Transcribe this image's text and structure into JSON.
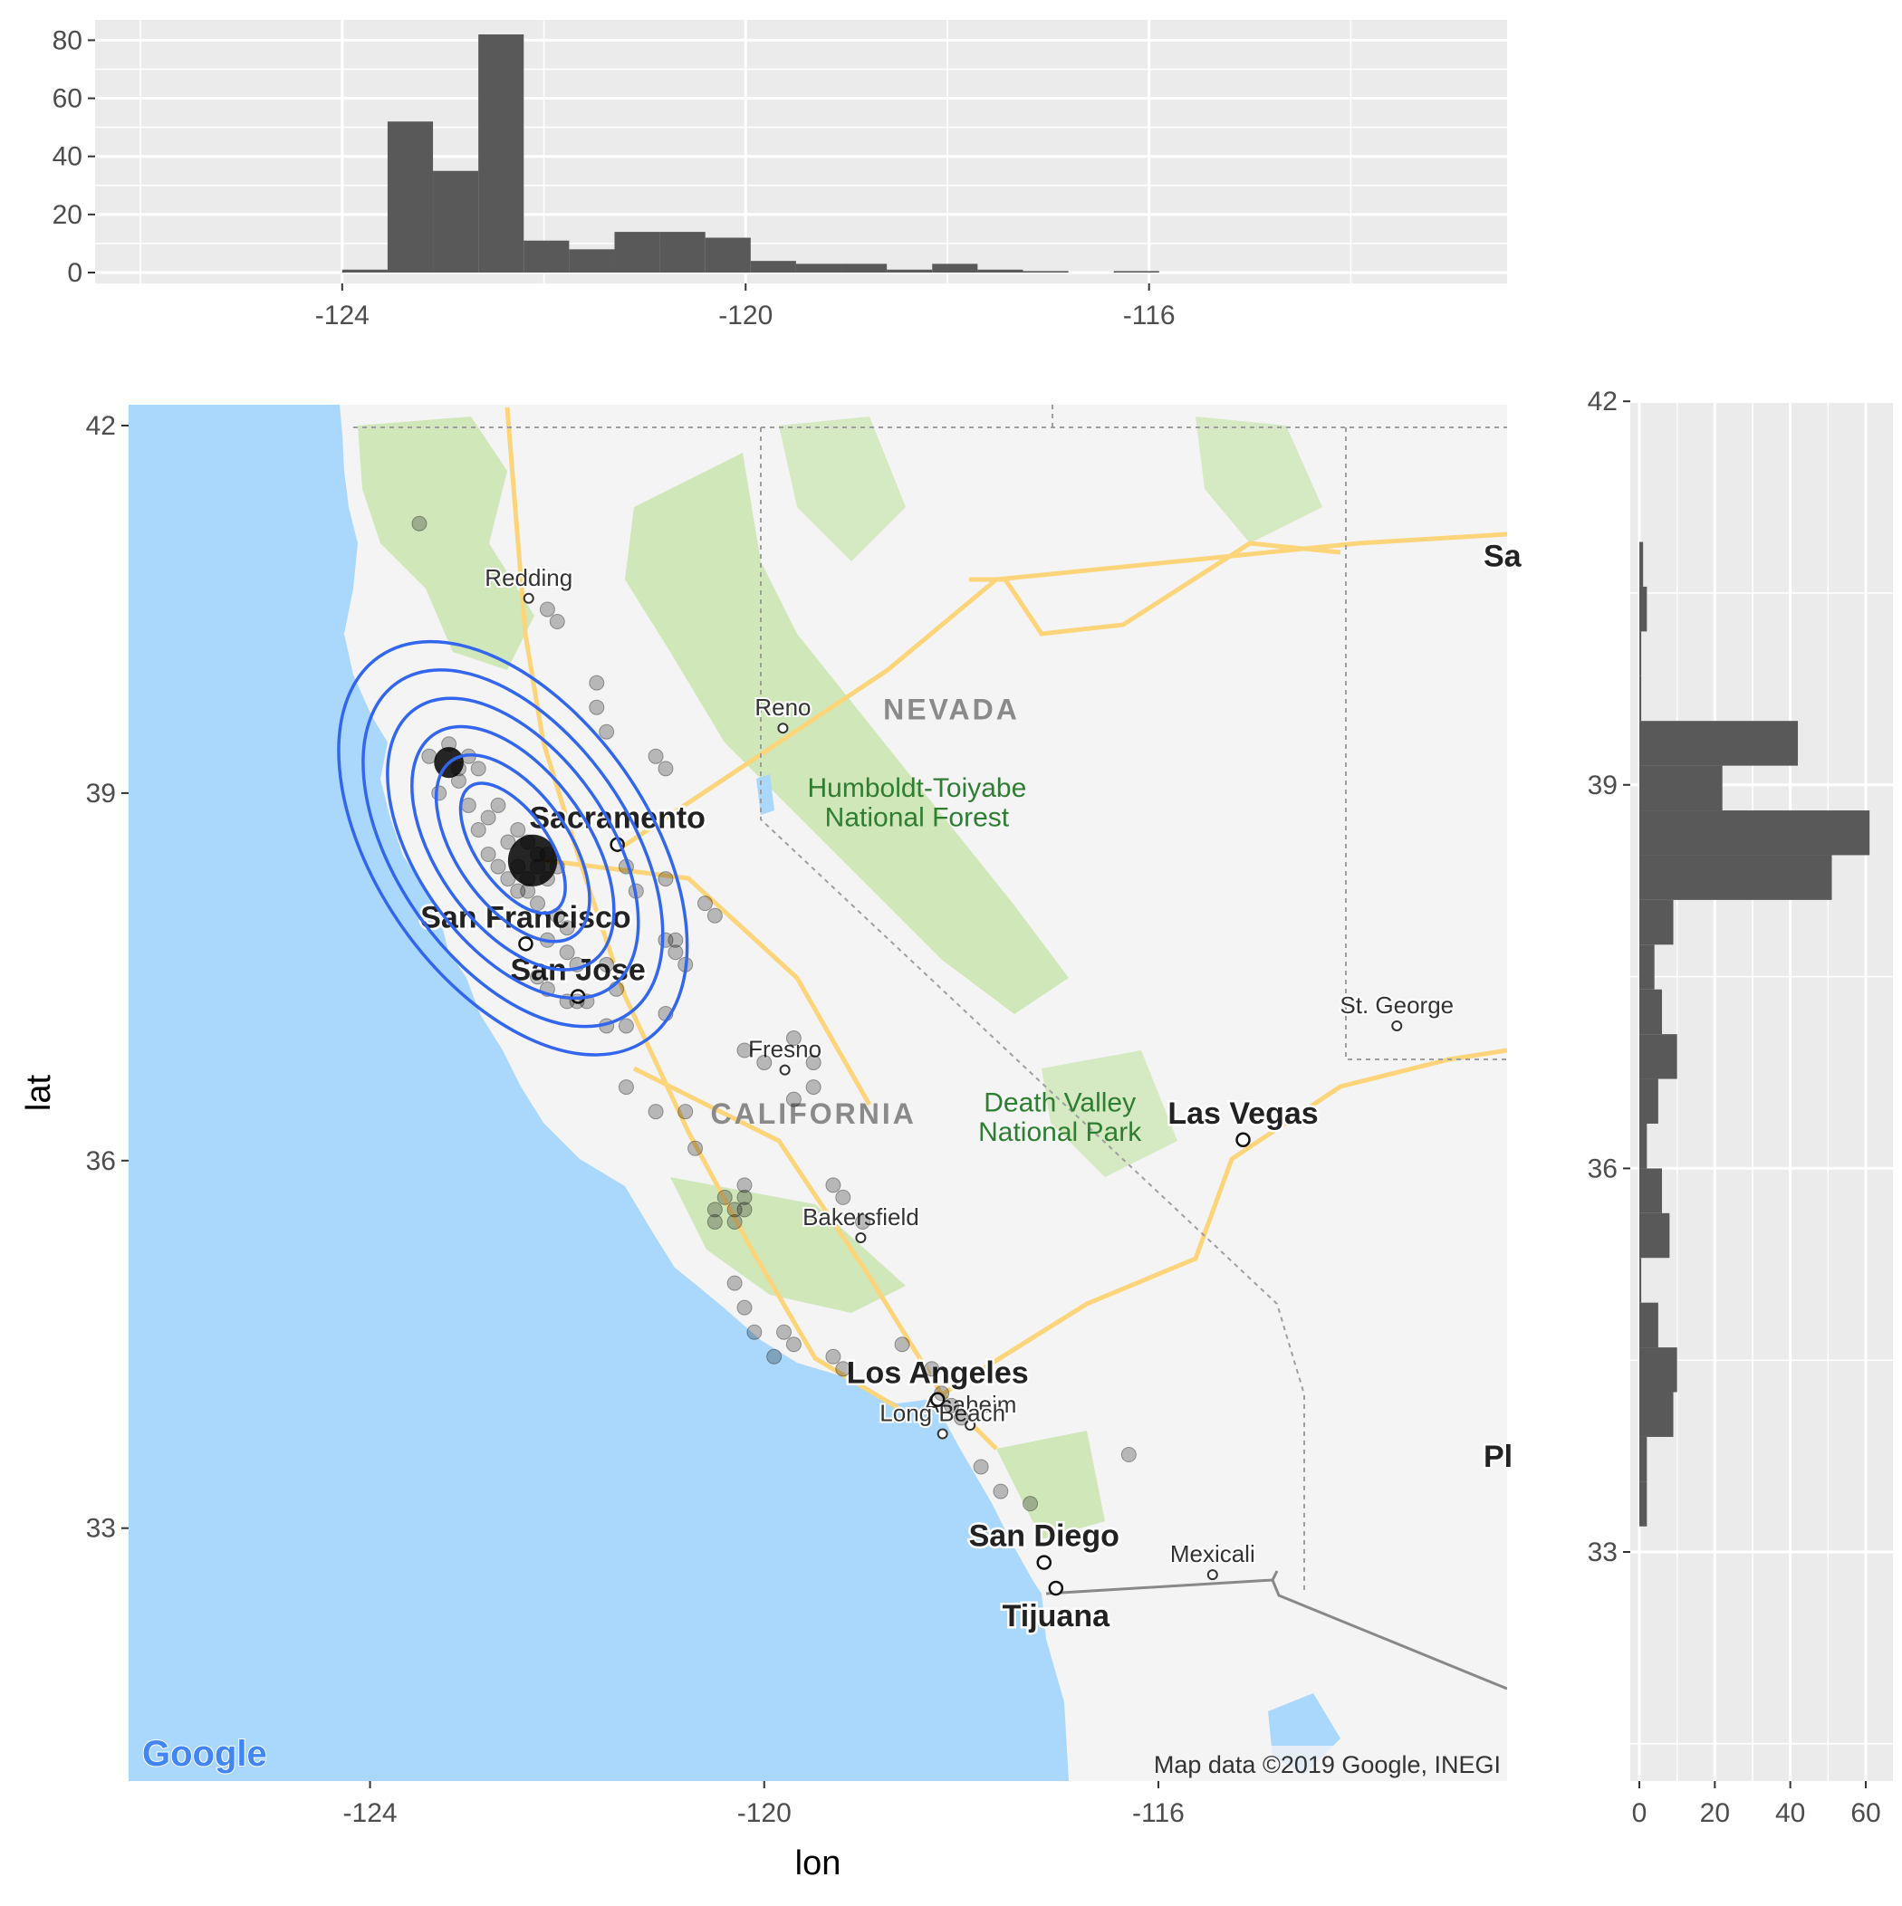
{
  "chart_data": [
    {
      "type": "bar",
      "panel": "top-histogram",
      "bin_width": 0.45,
      "x_breaks": [
        -124,
        -120,
        -116
      ],
      "y_breaks": [
        0,
        20,
        40,
        60,
        80
      ],
      "xlim": [
        -126.45,
        -112.45
      ],
      "ylim": [
        0,
        82
      ],
      "bins": [
        {
          "x0": -124.0,
          "x1": -123.55,
          "count": 1
        },
        {
          "x0": -123.55,
          "x1": -123.1,
          "count": 52
        },
        {
          "x0": -123.1,
          "x1": -122.65,
          "count": 35
        },
        {
          "x0": -122.65,
          "x1": -122.2,
          "count": 82
        },
        {
          "x0": -122.2,
          "x1": -121.75,
          "count": 11
        },
        {
          "x0": -121.75,
          "x1": -121.3,
          "count": 8
        },
        {
          "x0": -121.3,
          "x1": -120.85,
          "count": 14
        },
        {
          "x0": -120.85,
          "x1": -120.4,
          "count": 14
        },
        {
          "x0": -120.4,
          "x1": -119.95,
          "count": 12
        },
        {
          "x0": -119.95,
          "x1": -119.5,
          "count": 4
        },
        {
          "x0": -119.5,
          "x1": -119.05,
          "count": 3
        },
        {
          "x0": -119.05,
          "x1": -118.6,
          "count": 3
        },
        {
          "x0": -118.6,
          "x1": -118.15,
          "count": 1
        },
        {
          "x0": -118.15,
          "x1": -117.7,
          "count": 3
        },
        {
          "x0": -117.7,
          "x1": -117.25,
          "count": 1
        },
        {
          "x0": -117.25,
          "x1": -116.8,
          "count": 0.5
        },
        {
          "x0": -116.35,
          "x1": -115.9,
          "count": 0.5
        }
      ]
    },
    {
      "type": "scatter",
      "panel": "map",
      "xlabel": "lon",
      "ylabel": "lat",
      "x_breaks": [
        -124,
        -120,
        -116
      ],
      "y_breaks": [
        33,
        36,
        39
      ],
      "xlim": [
        -126.45,
        -112.45
      ],
      "ylim": [
        31.0,
        42.2
      ],
      "points": [
        [
          -123.5,
          41.2
        ],
        [
          -122.2,
          40.5
        ],
        [
          -122.1,
          40.4
        ],
        [
          -121.7,
          39.9
        ],
        [
          -121.7,
          39.7
        ],
        [
          -121.6,
          39.5
        ],
        [
          -121.1,
          39.3
        ],
        [
          -121.0,
          39.2
        ],
        [
          -121.4,
          38.4
        ],
        [
          -121.3,
          38.2
        ],
        [
          -121.0,
          38.3
        ],
        [
          -120.6,
          38.1
        ],
        [
          -120.5,
          38.0
        ],
        [
          -121.0,
          37.8
        ],
        [
          -120.9,
          37.7
        ],
        [
          -120.8,
          37.6
        ],
        [
          -120.9,
          37.8
        ],
        [
          -121.6,
          37.6
        ],
        [
          -121.5,
          37.4
        ],
        [
          -121.8,
          37.3
        ],
        [
          -121.6,
          37.1
        ],
        [
          -121.4,
          37.1
        ],
        [
          -121.0,
          37.2
        ],
        [
          -120.2,
          36.9
        ],
        [
          -120.0,
          36.8
        ],
        [
          -119.7,
          37.0
        ],
        [
          -119.5,
          36.8
        ],
        [
          -119.7,
          36.5
        ],
        [
          -119.5,
          36.6
        ],
        [
          -121.4,
          36.6
        ],
        [
          -121.1,
          36.4
        ],
        [
          -120.8,
          36.4
        ],
        [
          -120.7,
          36.1
        ],
        [
          -120.5,
          35.6
        ],
        [
          -120.4,
          35.7
        ],
        [
          -120.3,
          35.6
        ],
        [
          -120.2,
          35.7
        ],
        [
          -120.2,
          35.8
        ],
        [
          -119.3,
          35.8
        ],
        [
          -119.2,
          35.7
        ],
        [
          -119.0,
          35.5
        ],
        [
          -120.5,
          35.5
        ],
        [
          -120.3,
          35.5
        ],
        [
          -120.2,
          35.6
        ],
        [
          -120.3,
          35.0
        ],
        [
          -120.2,
          34.8
        ],
        [
          -120.1,
          34.6
        ],
        [
          -119.8,
          34.6
        ],
        [
          -119.7,
          34.5
        ],
        [
          -119.9,
          34.4
        ],
        [
          -119.3,
          34.4
        ],
        [
          -119.2,
          34.3
        ],
        [
          -118.6,
          34.5
        ],
        [
          -118.3,
          34.3
        ],
        [
          -118.2,
          34.1
        ],
        [
          -118.1,
          34.0
        ],
        [
          -118.0,
          33.9
        ],
        [
          -117.8,
          33.5
        ],
        [
          -117.6,
          33.3
        ],
        [
          -117.3,
          33.2
        ],
        [
          -116.3,
          33.6
        ],
        [
          -123.2,
          39.4
        ],
        [
          -123.0,
          39.3
        ],
        [
          -122.9,
          39.2
        ],
        [
          -123.1,
          39.1
        ],
        [
          -123.0,
          38.9
        ],
        [
          -122.8,
          38.8
        ],
        [
          -122.9,
          38.7
        ],
        [
          -122.6,
          38.6
        ],
        [
          -122.5,
          38.7
        ],
        [
          -122.4,
          38.6
        ],
        [
          -122.3,
          38.5
        ],
        [
          -122.2,
          38.5
        ],
        [
          -122.1,
          38.4
        ],
        [
          -122.2,
          38.3
        ],
        [
          -122.4,
          38.3
        ],
        [
          -122.5,
          38.2
        ],
        [
          -122.3,
          38.1
        ],
        [
          -122.1,
          38.0
        ],
        [
          -122.0,
          37.9
        ],
        [
          -122.2,
          37.8
        ],
        [
          -122.0,
          37.7
        ],
        [
          -121.9,
          37.6
        ],
        [
          -122.3,
          37.5
        ],
        [
          -122.2,
          37.4
        ],
        [
          -122.0,
          37.3
        ],
        [
          -121.9,
          37.3
        ],
        [
          -122.7,
          38.4
        ],
        [
          -122.8,
          38.5
        ],
        [
          -123.3,
          39.0
        ],
        [
          -123.4,
          39.3
        ],
        [
          -123.1,
          39.2
        ],
        [
          -122.7,
          38.9
        ],
        [
          -122.6,
          38.3
        ],
        [
          -122.5,
          38.4
        ],
        [
          -122.4,
          38.2
        ],
        [
          -122.3,
          38.4
        ]
      ],
      "dense_clusters": [
        {
          "lon": -123.2,
          "lat": 39.25,
          "size": 0.15
        },
        {
          "lon": -122.35,
          "lat": 38.45,
          "size": 0.25
        }
      ],
      "density_contours": {
        "center": [
          -122.55,
          38.55
        ],
        "levels": 6
      },
      "map_labels": {
        "cities_major": [
          {
            "name": "Sacramento",
            "lon": -121.49,
            "lat": 38.58
          },
          {
            "name": "San Francisco",
            "lon": -122.42,
            "lat": 37.77
          },
          {
            "name": "San Jose",
            "lon": -121.89,
            "lat": 37.34
          },
          {
            "name": "Las Vegas",
            "lon": -115.14,
            "lat": 36.17
          },
          {
            "name": "Los Angeles",
            "lon": -118.24,
            "lat": 34.05
          },
          {
            "name": "San Diego",
            "lon": -117.16,
            "lat": 32.72
          },
          {
            "name": "Tijuana",
            "lon": -117.04,
            "lat": 32.51
          }
        ],
        "cities_minor": [
          {
            "name": "Redding",
            "lon": -122.39,
            "lat": 40.59
          },
          {
            "name": "Reno",
            "lon": -119.81,
            "lat": 39.53
          },
          {
            "name": "Fresno",
            "lon": -119.79,
            "lat": 36.74
          },
          {
            "name": "Bakersfield",
            "lon": -119.02,
            "lat": 35.37
          },
          {
            "name": "Anaheim",
            "lon": -117.91,
            "lat": 33.84
          },
          {
            "name": "Long Beach",
            "lon": -118.19,
            "lat": 33.77
          },
          {
            "name": "St. George",
            "lon": -113.58,
            "lat": 37.1
          },
          {
            "name": "Mexicali",
            "lon": -115.45,
            "lat": 32.62
          }
        ],
        "states": [
          {
            "name": "NEVADA",
            "lon": -118.1,
            "lat": 39.6
          },
          {
            "name": "CALIFORNIA",
            "lon": -119.5,
            "lat": 36.3
          }
        ],
        "parks": [
          {
            "name": "Humboldt-Toiyabe",
            "lon": -118.45,
            "lat": 38.97
          },
          {
            "name": "National Forest",
            "lon": -118.45,
            "lat": 38.73
          },
          {
            "name": "Death Valley",
            "lon": -117.0,
            "lat": 36.4
          },
          {
            "name": "National Park",
            "lon": -117.0,
            "lat": 36.16
          }
        ],
        "edge_fragments": [
          {
            "name": "Sa",
            "lon": -112.7,
            "lat": 40.85
          },
          {
            "name": "Pl",
            "lon": -112.7,
            "lat": 33.5
          }
        ]
      },
      "attribution": "Map data ©2019 Google, INEGI",
      "logo_text": "Google",
      "colors": {
        "water": "#aad8fc",
        "land": "#f4f4f4",
        "contour": "#3366ee",
        "roads": "#fcd47a",
        "greenery": "#cbe6b2"
      }
    },
    {
      "type": "bar",
      "panel": "right-histogram",
      "orientation": "horizontal",
      "bin_width": 0.35,
      "y_breaks": [
        33,
        36,
        39,
        42
      ],
      "x_breaks": [
        0,
        20,
        40,
        60
      ],
      "ylim": [
        30.6,
        42.2
      ],
      "xlim": [
        0,
        60
      ],
      "bins": [
        {
          "y0": 40.55,
          "y1": 40.9,
          "count": 1
        },
        {
          "y0": 40.2,
          "y1": 40.55,
          "count": 2
        },
        {
          "y0": 39.85,
          "y1": 40.2,
          "count": 0.5
        },
        {
          "y0": 39.5,
          "y1": 39.85,
          "count": 0.5
        },
        {
          "y0": 39.15,
          "y1": 39.5,
          "count": 42
        },
        {
          "y0": 38.8,
          "y1": 39.15,
          "count": 22
        },
        {
          "y0": 38.45,
          "y1": 38.8,
          "count": 61
        },
        {
          "y0": 38.1,
          "y1": 38.45,
          "count": 51
        },
        {
          "y0": 37.75,
          "y1": 38.1,
          "count": 9
        },
        {
          "y0": 37.4,
          "y1": 37.75,
          "count": 4
        },
        {
          "y0": 37.05,
          "y1": 37.4,
          "count": 6
        },
        {
          "y0": 36.7,
          "y1": 37.05,
          "count": 10
        },
        {
          "y0": 36.35,
          "y1": 36.7,
          "count": 5
        },
        {
          "y0": 36.0,
          "y1": 36.35,
          "count": 2
        },
        {
          "y0": 35.65,
          "y1": 36.0,
          "count": 6
        },
        {
          "y0": 35.3,
          "y1": 35.65,
          "count": 8
        },
        {
          "y0": 34.95,
          "y1": 35.3,
          "count": 0.5
        },
        {
          "y0": 34.6,
          "y1": 34.95,
          "count": 5
        },
        {
          "y0": 34.25,
          "y1": 34.6,
          "count": 10
        },
        {
          "y0": 33.9,
          "y1": 34.25,
          "count": 9
        },
        {
          "y0": 33.55,
          "y1": 33.9,
          "count": 2
        },
        {
          "y0": 33.2,
          "y1": 33.55,
          "count": 2
        }
      ]
    }
  ]
}
